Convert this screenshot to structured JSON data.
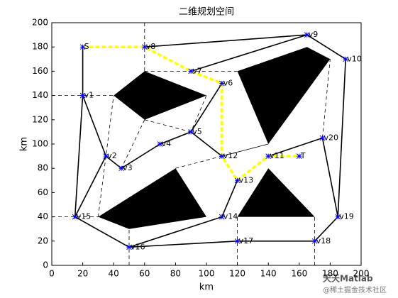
{
  "chart_data": {
    "type": "network",
    "title": "二维规划空间",
    "xlabel": "km",
    "ylabel": "km",
    "xlim": [
      0,
      200
    ],
    "ylim": [
      0,
      200
    ],
    "xticks": [
      0,
      20,
      40,
      60,
      80,
      100,
      120,
      140,
      160,
      180,
      200
    ],
    "yticks": [
      0,
      20,
      40,
      60,
      80,
      100,
      120,
      140,
      160,
      180,
      200
    ],
    "obstacle_color": "#000000",
    "edge_color": "#000000",
    "path_color": "#ffff00",
    "node_color": "#0000ff",
    "obstacles": [
      {
        "x": [
          40,
          60,
          100,
          60
        ],
        "y": [
          140,
          160,
          140,
          120
        ]
      },
      {
        "x": [
          120,
          165,
          180,
          140
        ],
        "y": [
          160,
          180,
          170,
          100
        ]
      },
      {
        "x": [
          30,
          80,
          100,
          50
        ],
        "y": [
          40,
          80,
          40,
          30
        ]
      },
      {
        "x": [
          120,
          140,
          170
        ],
        "y": [
          40,
          80,
          40
        ]
      }
    ],
    "nodes": {
      "labels": [
        "S",
        "T",
        "v1",
        "v2",
        "v3",
        "v4",
        "v5",
        "v6",
        "v7",
        "v8",
        "v9",
        "v10",
        "v11",
        "v12",
        "v13",
        "v14",
        "v15",
        "v16",
        "v17",
        "v18",
        "v19",
        "v20"
      ],
      "x": [
        20,
        160,
        20,
        35,
        45,
        70,
        90,
        110,
        90,
        60,
        165,
        190,
        140,
        110,
        120,
        110,
        15,
        50,
        120,
        170,
        185,
        175
      ],
      "y": [
        180,
        90,
        140,
        90,
        80,
        100,
        110,
        150,
        160,
        180,
        190,
        170,
        90,
        90,
        70,
        40,
        40,
        15,
        20,
        20,
        40,
        105
      ]
    },
    "edges": [
      {
        "x": [
          20,
          20
        ],
        "y": [
          180,
          140
        ]
      },
      {
        "x": [
          20,
          15
        ],
        "y": [
          140,
          40
        ]
      },
      {
        "x": [
          60,
          165
        ],
        "y": [
          180,
          190
        ]
      },
      {
        "x": [
          90,
          165
        ],
        "y": [
          160,
          190
        ]
      },
      {
        "x": [
          165,
          190
        ],
        "y": [
          190,
          170
        ]
      },
      {
        "x": [
          190,
          185
        ],
        "y": [
          170,
          40
        ]
      },
      {
        "x": [
          185,
          170
        ],
        "y": [
          40,
          20
        ]
      },
      {
        "x": [
          170,
          120
        ],
        "y": [
          20,
          20
        ]
      },
      {
        "x": [
          120,
          50
        ],
        "y": [
          20,
          15
        ]
      },
      {
        "x": [
          50,
          15
        ],
        "y": [
          15,
          40
        ]
      },
      {
        "x": [
          50,
          110
        ],
        "y": [
          15,
          40
        ]
      },
      {
        "x": [
          110,
          120
        ],
        "y": [
          40,
          70
        ]
      },
      {
        "x": [
          20,
          35
        ],
        "y": [
          140,
          90
        ]
      },
      {
        "x": [
          35,
          45
        ],
        "y": [
          90,
          80
        ]
      },
      {
        "x": [
          45,
          70
        ],
        "y": [
          80,
          100
        ]
      },
      {
        "x": [
          70,
          90
        ],
        "y": [
          100,
          110
        ]
      },
      {
        "x": [
          90,
          110
        ],
        "y": [
          110,
          150
        ]
      },
      {
        "x": [
          90,
          110
        ],
        "y": [
          110,
          90
        ]
      },
      {
        "x": [
          140,
          175
        ],
        "y": [
          90,
          105
        ]
      },
      {
        "x": [
          175,
          185
        ],
        "y": [
          105,
          40
        ]
      },
      {
        "x": [
          15,
          35
        ],
        "y": [
          40,
          90
        ]
      }
    ],
    "dashed": [
      {
        "x": [
          0,
          40
        ],
        "y": [
          140,
          140
        ]
      },
      {
        "x": [
          60,
          60
        ],
        "y": [
          200,
          160
        ]
      },
      {
        "x": [
          60,
          120
        ],
        "y": [
          160,
          160
        ]
      },
      {
        "x": [
          0,
          30
        ],
        "y": [
          40,
          40
        ]
      },
      {
        "x": [
          50,
          50
        ],
        "y": [
          0,
          30
        ]
      },
      {
        "x": [
          120,
          120
        ],
        "y": [
          0,
          40
        ]
      },
      {
        "x": [
          170,
          170
        ],
        "y": [
          0,
          40
        ]
      },
      {
        "x": [
          60,
          45
        ],
        "y": [
          120,
          80
        ]
      },
      {
        "x": [
          60,
          90
        ],
        "y": [
          120,
          110
        ]
      },
      {
        "x": [
          100,
          90
        ],
        "y": [
          140,
          110
        ]
      },
      {
        "x": [
          140,
          110
        ],
        "y": [
          100,
          90
        ]
      },
      {
        "x": [
          80,
          140
        ],
        "y": [
          80,
          100
        ]
      },
      {
        "x": [
          30,
          40
        ],
        "y": [
          40,
          140
        ]
      },
      {
        "x": [
          175,
          180
        ],
        "y": [
          105,
          170
        ]
      }
    ],
    "path": {
      "x": [
        20,
        60,
        90,
        110,
        110,
        120,
        140,
        160
      ],
      "y": [
        180,
        180,
        160,
        150,
        90,
        70,
        90,
        90
      ]
    }
  },
  "watermark": [
    "天天Matlab",
    "@稀土掘金技术社区"
  ]
}
